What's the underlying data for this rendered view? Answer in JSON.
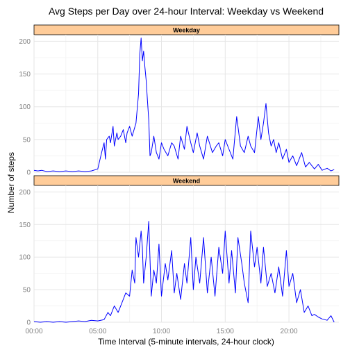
{
  "chart_data": {
    "type": "line",
    "title": "Avg Steps per Day over 24-hour Interval: Weekday vs Weekend",
    "xlabel": "Time Interval (5-minute intervals, 24-hour clock)",
    "ylabel": "Number of steps",
    "x_unit": "hours",
    "xlim": [
      0,
      23.92
    ],
    "ylim": [
      0,
      210
    ],
    "x_ticks": [
      0,
      5,
      10,
      15,
      20
    ],
    "x_tick_labels": [
      "00:00",
      "05:00",
      "10:00",
      "15:00",
      "20:00"
    ],
    "y_ticks": [
      0,
      50,
      100,
      150,
      200
    ],
    "grid": true,
    "line_color": "#0000FF",
    "strip_color": "#FFCC99",
    "panels": [
      {
        "label": "Weekday",
        "x": [
          0.0,
          0.3,
          0.6,
          1.0,
          1.5,
          2.0,
          2.5,
          3.0,
          3.5,
          4.0,
          4.5,
          5.0,
          5.3,
          5.5,
          5.6,
          5.7,
          5.9,
          6.0,
          6.2,
          6.3,
          6.5,
          6.6,
          6.8,
          7.0,
          7.2,
          7.3,
          7.5,
          7.7,
          8.0,
          8.2,
          8.3,
          8.4,
          8.5,
          8.6,
          8.7,
          8.8,
          8.9,
          9.0,
          9.1,
          9.2,
          9.4,
          9.6,
          9.8,
          10.0,
          10.2,
          10.5,
          10.8,
          11.0,
          11.3,
          11.5,
          11.8,
          12.0,
          12.3,
          12.5,
          12.8,
          13.0,
          13.3,
          13.6,
          14.0,
          14.3,
          14.5,
          14.8,
          15.0,
          15.3,
          15.6,
          15.9,
          16.2,
          16.5,
          16.8,
          17.0,
          17.3,
          17.6,
          17.8,
          18.0,
          18.2,
          18.4,
          18.6,
          18.8,
          19.0,
          19.2,
          19.5,
          19.8,
          20.0,
          20.3,
          20.6,
          21.0,
          21.3,
          21.6,
          22.0,
          22.3,
          22.6,
          23.0,
          23.3,
          23.55
        ],
        "values": [
          3,
          2,
          3,
          1,
          2,
          1,
          2,
          1,
          2,
          1,
          2,
          5,
          30,
          45,
          20,
          50,
          55,
          45,
          70,
          40,
          60,
          50,
          55,
          65,
          45,
          60,
          70,
          55,
          75,
          120,
          180,
          205,
          170,
          185,
          160,
          140,
          110,
          80,
          25,
          30,
          55,
          30,
          20,
          45,
          35,
          25,
          45,
          40,
          20,
          55,
          35,
          70,
          45,
          30,
          60,
          40,
          20,
          55,
          30,
          40,
          45,
          25,
          50,
          35,
          20,
          85,
          40,
          30,
          55,
          40,
          30,
          85,
          50,
          75,
          105,
          60,
          40,
          50,
          30,
          45,
          20,
          35,
          15,
          25,
          10,
          30,
          8,
          15,
          5,
          12,
          3,
          6,
          2,
          4
        ]
      },
      {
        "label": "Weekend",
        "x": [
          0.0,
          0.5,
          1.0,
          1.5,
          2.0,
          2.5,
          3.0,
          3.5,
          4.0,
          4.5,
          5.0,
          5.5,
          5.8,
          6.0,
          6.3,
          6.6,
          6.9,
          7.2,
          7.5,
          7.7,
          7.9,
          8.0,
          8.2,
          8.4,
          8.5,
          8.6,
          8.8,
          9.0,
          9.2,
          9.4,
          9.6,
          9.8,
          10.0,
          10.3,
          10.5,
          10.8,
          11.0,
          11.2,
          11.5,
          11.8,
          12.0,
          12.3,
          12.5,
          12.7,
          13.0,
          13.3,
          13.6,
          13.9,
          14.2,
          14.5,
          14.8,
          15.0,
          15.3,
          15.5,
          15.8,
          16.0,
          16.3,
          16.5,
          16.8,
          17.0,
          17.3,
          17.5,
          17.8,
          18.0,
          18.3,
          18.6,
          18.9,
          19.2,
          19.5,
          19.8,
          20.0,
          20.3,
          20.6,
          20.9,
          21.2,
          21.5,
          21.8,
          22.0,
          22.3,
          22.6,
          23.0,
          23.3,
          23.55
        ],
        "values": [
          1,
          0,
          1,
          0,
          1,
          0,
          1,
          2,
          1,
          3,
          2,
          4,
          15,
          10,
          25,
          15,
          30,
          45,
          40,
          80,
          60,
          130,
          100,
          140,
          115,
          60,
          100,
          155,
          40,
          80,
          60,
          120,
          40,
          90,
          65,
          110,
          45,
          75,
          35,
          90,
          60,
          130,
          50,
          100,
          60,
          130,
          45,
          100,
          40,
          115,
          75,
          140,
          60,
          110,
          45,
          130,
          90,
          60,
          30,
          140,
          85,
          115,
          60,
          115,
          55,
          75,
          45,
          85,
          40,
          110,
          55,
          75,
          30,
          50,
          15,
          25,
          10,
          12,
          8,
          5,
          3,
          10,
          0
        ]
      }
    ]
  }
}
